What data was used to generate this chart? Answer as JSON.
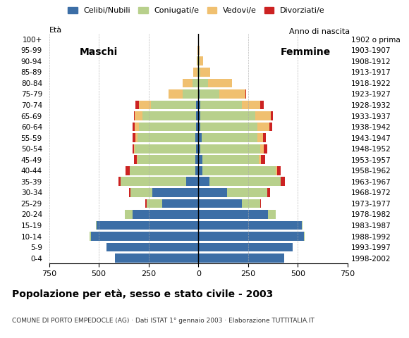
{
  "age_groups": [
    "0-4",
    "5-9",
    "10-14",
    "15-19",
    "20-24",
    "25-29",
    "30-34",
    "35-39",
    "40-44",
    "45-49",
    "50-54",
    "55-59",
    "60-64",
    "65-69",
    "70-74",
    "75-79",
    "80-84",
    "85-89",
    "90-94",
    "95-99",
    "100+"
  ],
  "birth_years": [
    "1998-2002",
    "1993-1997",
    "1988-1992",
    "1983-1987",
    "1978-1982",
    "1973-1977",
    "1968-1972",
    "1963-1967",
    "1958-1962",
    "1953-1957",
    "1948-1952",
    "1943-1947",
    "1938-1942",
    "1933-1937",
    "1928-1932",
    "1923-1927",
    "1918-1922",
    "1913-1917",
    "1908-1912",
    "1903-1907",
    "1902 o prima"
  ],
  "males": {
    "celibi": [
      420,
      460,
      540,
      510,
      330,
      180,
      230,
      60,
      15,
      15,
      10,
      15,
      10,
      10,
      10,
      0,
      0,
      0,
      0,
      0,
      0
    ],
    "coniugati": [
      0,
      0,
      5,
      5,
      40,
      80,
      110,
      330,
      330,
      290,
      310,
      290,
      290,
      270,
      230,
      80,
      30,
      5,
      3,
      2,
      0
    ],
    "vedovi": [
      0,
      0,
      0,
      0,
      0,
      0,
      0,
      0,
      0,
      5,
      5,
      10,
      20,
      40,
      60,
      70,
      50,
      20,
      5,
      3,
      0
    ],
    "divorziati": [
      0,
      0,
      0,
      0,
      0,
      5,
      10,
      10,
      20,
      15,
      5,
      15,
      10,
      5,
      15,
      0,
      0,
      0,
      0,
      0,
      0
    ]
  },
  "females": {
    "nubili": [
      430,
      475,
      530,
      520,
      350,
      220,
      145,
      55,
      20,
      20,
      10,
      15,
      10,
      10,
      10,
      5,
      0,
      0,
      0,
      0,
      0
    ],
    "coniugate": [
      0,
      0,
      5,
      5,
      40,
      90,
      200,
      360,
      370,
      285,
      300,
      280,
      285,
      275,
      210,
      100,
      50,
      10,
      5,
      2,
      0
    ],
    "vedove": [
      0,
      0,
      0,
      0,
      0,
      0,
      0,
      0,
      5,
      10,
      20,
      30,
      60,
      80,
      90,
      130,
      120,
      50,
      20,
      5,
      0
    ],
    "divorziate": [
      0,
      0,
      0,
      0,
      0,
      5,
      15,
      20,
      20,
      20,
      15,
      15,
      15,
      10,
      20,
      5,
      0,
      0,
      0,
      0,
      0
    ]
  },
  "colors": {
    "celibi": "#3C6EA6",
    "coniugati": "#B8D08C",
    "vedovi": "#F0C070",
    "divorziati": "#CC2222"
  },
  "title": "Popolazione per età, sesso e stato civile - 2003",
  "subtitle": "COMUNE DI PORTO EMPEDOCLE (AG) · Dati ISTAT 1° gennaio 2003 · Elaborazione TUTTITALIA.IT",
  "xlim": 750,
  "legend_labels": [
    "Celibi/Nubili",
    "Coniugati/e",
    "Vedovi/e",
    "Divorziati/e"
  ]
}
